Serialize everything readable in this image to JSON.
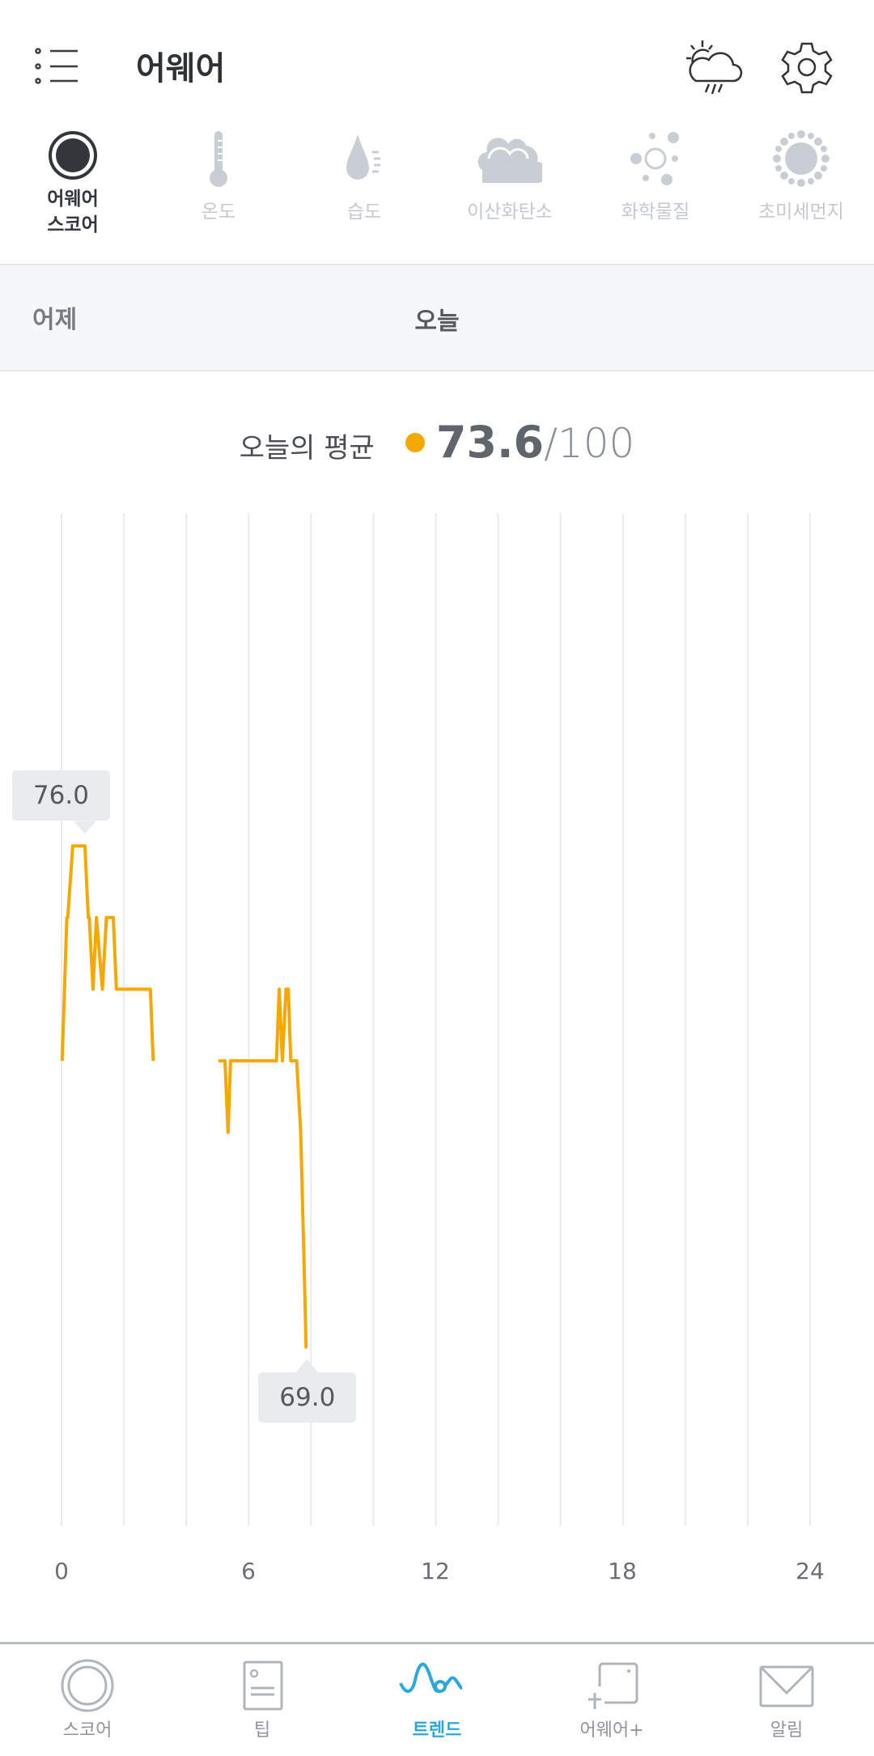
{
  "header": {
    "title": "어웨어",
    "menu_icon": "menu-list-icon",
    "weather_icon": "weather-cloud-rain-sun-icon",
    "settings_icon": "gear-icon"
  },
  "categories": [
    {
      "label": "어웨어\n스코어",
      "line1": "어웨어",
      "line2": "스코어",
      "icon": "score-circle-icon",
      "active": true
    },
    {
      "label": "온도",
      "icon": "thermometer-icon"
    },
    {
      "label": "습도",
      "icon": "water-drop-icon"
    },
    {
      "label": "이산화탄소",
      "icon": "cloud-icon"
    },
    {
      "label": "화학물질",
      "icon": "chemical-dots-icon"
    },
    {
      "label": "초미세먼지",
      "icon": "particle-virus-icon"
    }
  ],
  "days": {
    "yesterday": "어제",
    "today": "오늘"
  },
  "average": {
    "label": "오늘의 평균",
    "value": "73.6",
    "max": "/100",
    "dot_color": "#f5a800"
  },
  "chart_data": {
    "type": "line",
    "x_ticks": [
      "0",
      "6",
      "12",
      "18",
      "24"
    ],
    "xlim": [
      0,
      24
    ],
    "ylim": [
      66.5,
      80.65
    ],
    "grid": "vertical every 2 hours",
    "color": "#f5a800",
    "series": [
      {
        "points": [
          [
            0.02,
            73
          ],
          [
            0.17,
            75
          ],
          [
            0.2,
            75
          ],
          [
            0.36,
            76
          ],
          [
            0.75,
            76
          ],
          [
            0.86,
            75
          ],
          [
            0.89,
            75
          ],
          [
            1.01,
            74
          ],
          [
            1.12,
            75
          ],
          [
            1.31,
            74
          ],
          [
            1.44,
            75
          ],
          [
            1.66,
            75
          ],
          [
            1.76,
            74
          ],
          [
            2.85,
            74
          ],
          [
            2.94,
            73
          ]
        ]
      },
      {
        "points": [
          [
            5.03,
            73
          ],
          [
            5.24,
            73
          ],
          [
            5.34,
            72
          ],
          [
            5.42,
            73
          ],
          [
            6.89,
            73
          ],
          [
            6.98,
            74
          ],
          [
            7.08,
            73
          ],
          [
            7.2,
            74
          ],
          [
            7.27,
            74
          ],
          [
            7.35,
            73
          ],
          [
            7.54,
            73
          ],
          [
            7.67,
            72
          ],
          [
            7.78,
            70.1
          ],
          [
            7.84,
            69
          ],
          [
            7.87,
            69
          ]
        ]
      }
    ],
    "annotations": [
      {
        "label": "76.0",
        "x": 0.75,
        "y": 76,
        "position": "above"
      },
      {
        "label": "69.0",
        "x": 7.87,
        "y": 69,
        "position": "below"
      }
    ]
  },
  "nav": [
    {
      "label": "스코어",
      "icon": "score-ring-icon"
    },
    {
      "label": "팁",
      "icon": "tip-card-icon"
    },
    {
      "label": "트렌드",
      "icon": "trend-wave-icon",
      "active": true
    },
    {
      "label": "어웨어+",
      "icon": "awair-plus-icon"
    },
    {
      "label": "알림",
      "icon": "mail-envelope-icon"
    }
  ],
  "colors": {
    "accent": "#2aa8dc",
    "line": "#f5a800",
    "inactive": "#c4c9cf"
  }
}
